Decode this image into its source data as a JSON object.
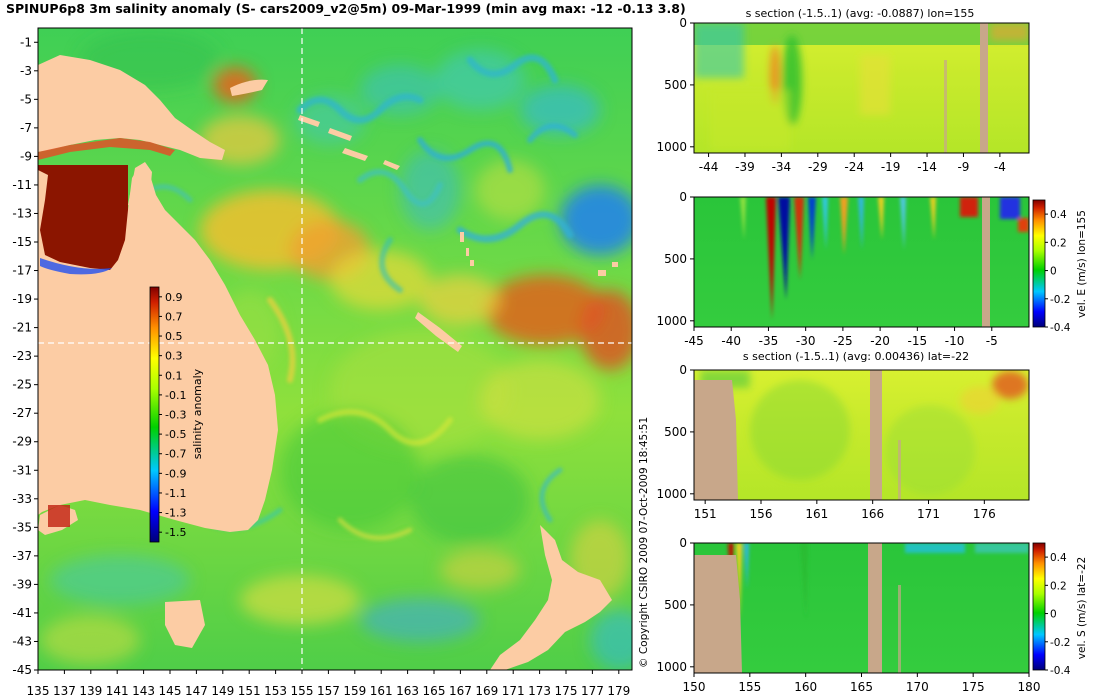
{
  "title": "SPINUP6p8 3m salinity anomaly (S- cars2009_v2@5m) 09-Mar-1999 (min avg max: -12 -0.13 3.8)",
  "copyright": "© Copyright CSIRO 2009   07-Oct-2009 18:45:51",
  "colors": {
    "land": "#fccca4",
    "bathy_land": "#c8a78a",
    "frame": "#000000",
    "guide": "#ffffff",
    "ocean_base": "#5dd84a"
  },
  "chart_data": [
    {
      "name": "map",
      "type": "heatmap",
      "title": "SPINUP6p8 3m salinity anomaly (S- cars2009_v2@5m) 09-Mar-1999 (min avg max: -12 -0.13 3.8)",
      "xlim": [
        135,
        180
      ],
      "ylim": [
        -45,
        0
      ],
      "xticks": [
        135,
        137,
        139,
        141,
        143,
        145,
        147,
        149,
        151,
        153,
        155,
        157,
        159,
        161,
        163,
        165,
        167,
        169,
        171,
        173,
        175,
        177,
        179
      ],
      "yticks": [
        -1,
        -3,
        -5,
        -7,
        -9,
        -11,
        -13,
        -15,
        -17,
        -19,
        -21,
        -23,
        -25,
        -27,
        -29,
        -31,
        -33,
        -35,
        -37,
        -39,
        -41,
        -43,
        -45
      ],
      "guide_lon": 155,
      "guide_lat": -22,
      "colorbar": {
        "label": "salinity anomaly",
        "ticks": [
          "0.9",
          "0.7",
          "0.5",
          "0.3",
          "0.1",
          "-0.1",
          "-0.3",
          "-0.5",
          "-0.7",
          "-0.9",
          "-1.1",
          "-1.3",
          "-1.5"
        ],
        "range": [
          -1.6,
          1.0
        ]
      }
    },
    {
      "name": "panel1",
      "type": "heatmap",
      "title": "s section (-1.5..1) (avg: -0.0887) lon=155",
      "xticks": [
        -44,
        -39,
        -34,
        -29,
        -24,
        -19,
        -14,
        -9,
        -4
      ],
      "xlim": [
        -46,
        0
      ],
      "yticks": [
        0,
        500,
        1000
      ],
      "ylim": [
        0,
        1050
      ]
    },
    {
      "name": "panel2",
      "type": "heatmap",
      "title": "",
      "xticks": [
        -45,
        -40,
        -35,
        -30,
        -25,
        -20,
        -15,
        -10,
        -5
      ],
      "xlim": [
        -45,
        0
      ],
      "yticks": [
        0,
        500,
        1000
      ],
      "ylim": [
        0,
        1050
      ],
      "colorbar": {
        "label": "vel. E (m/s) lon=155",
        "ticks": [
          "0.4",
          "0.2",
          "0",
          "-0.2",
          "-0.4"
        ],
        "range": [
          -0.4,
          0.5
        ]
      }
    },
    {
      "name": "panel3",
      "type": "heatmap",
      "title": "s section (-1.5..1) (avg: 0.00436) lat=-22",
      "xticks": [
        151,
        156,
        161,
        166,
        171,
        176
      ],
      "xlim": [
        150,
        180
      ],
      "yticks": [
        0,
        500,
        1000
      ],
      "ylim": [
        0,
        1050
      ]
    },
    {
      "name": "panel4",
      "type": "heatmap",
      "title": "",
      "xticks": [
        150,
        155,
        160,
        165,
        170,
        175,
        180
      ],
      "xlim": [
        150,
        180
      ],
      "yticks": [
        0,
        500,
        1000
      ],
      "ylim": [
        0,
        1050
      ],
      "colorbar": {
        "label": "vel. S (m/s) lat=-22",
        "ticks": [
          "0.4",
          "0.2",
          "0",
          "-0.2",
          "-0.4"
        ],
        "range": [
          -0.4,
          0.5
        ]
      }
    }
  ]
}
